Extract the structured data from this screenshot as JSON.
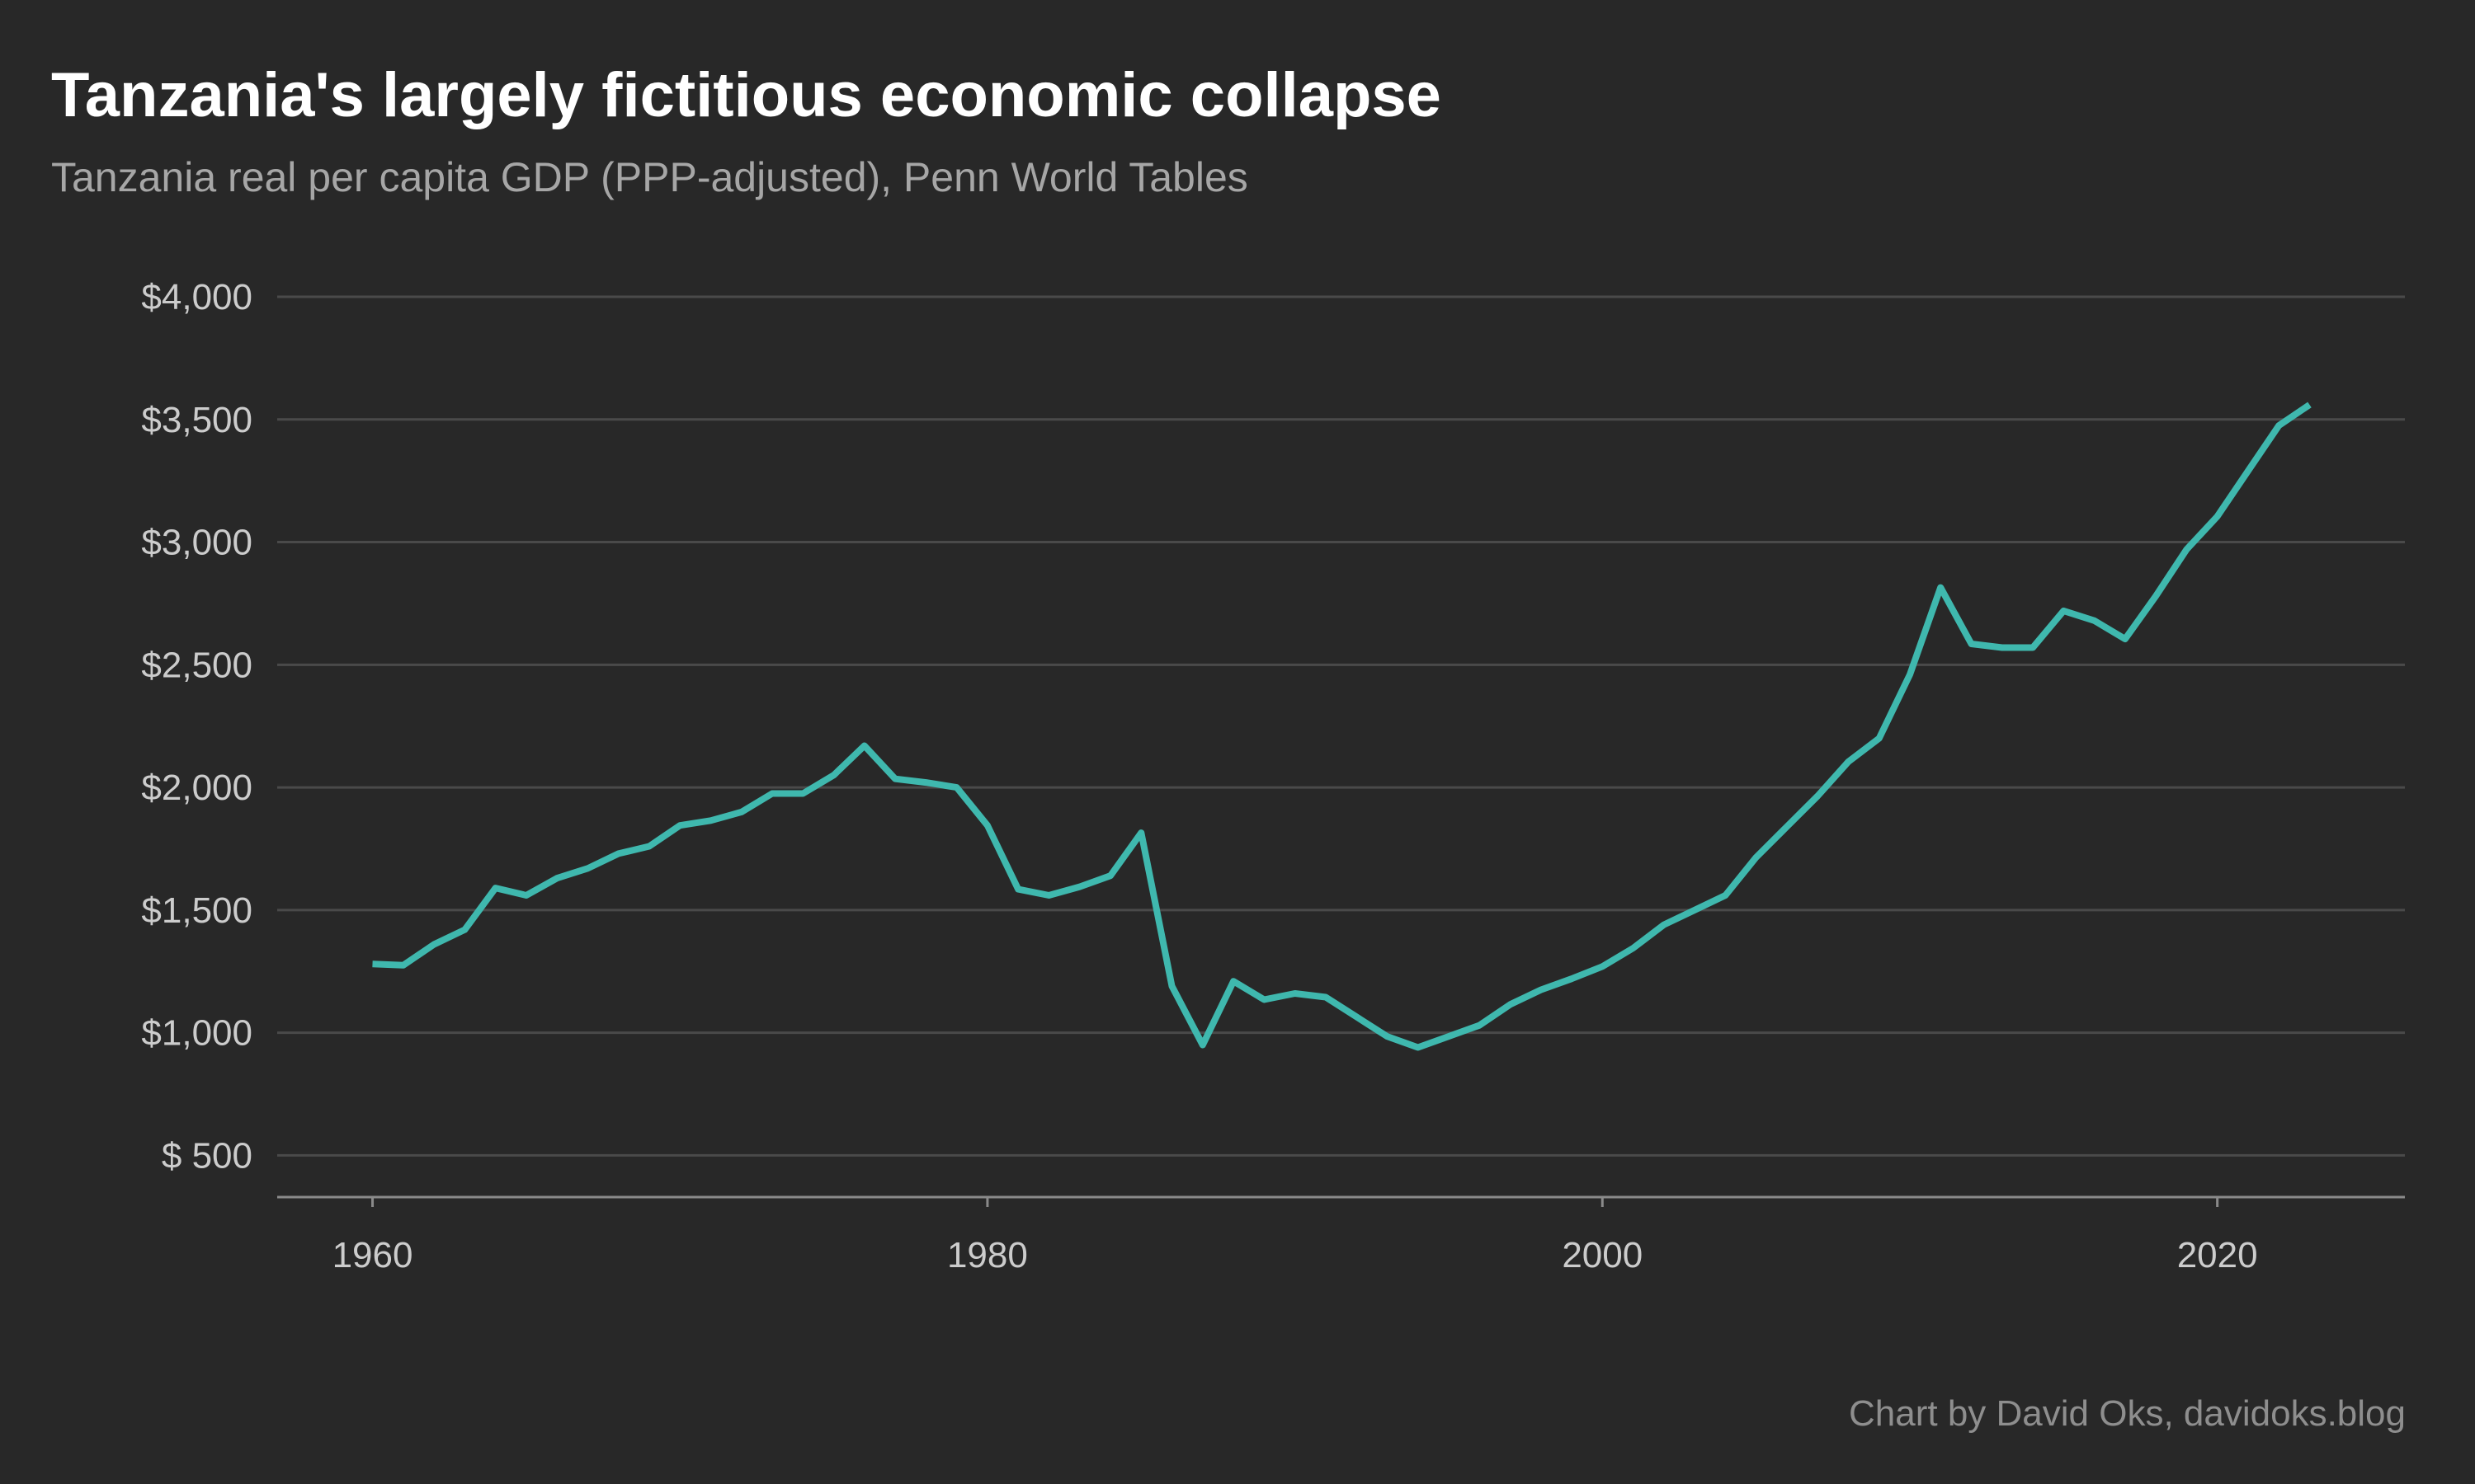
{
  "title": "Tanzania's largely fictitious economic collapse",
  "subtitle": "Tanzania real per capita GDP (PPP-adjusted), Penn World Tables",
  "caption": "Chart by David Oks, davidoks.blog",
  "colors": {
    "background": "#282828",
    "line": "#3fb8ae",
    "grid": "#4a4a4a",
    "axis": "#8a8a8a",
    "title": "#ffffff",
    "subtitle": "#a6a6a6",
    "tick": "#cccccc"
  },
  "chart_data": {
    "type": "line",
    "title": "Tanzania's largely fictitious economic collapse",
    "subtitle": "Tanzania real per capita GDP (PPP-adjusted), Penn World Tables",
    "xlabel": "",
    "ylabel": "",
    "xlim": [
      1956.9,
      2026.1
    ],
    "ylim": [
      330,
      4000
    ],
    "grid": true,
    "legend": "none",
    "x_ticks": [
      1960,
      1980,
      2000,
      2020
    ],
    "x_tick_labels": [
      "1960",
      "1980",
      "2000",
      "2020"
    ],
    "y_ticks": [
      500,
      1000,
      1500,
      2000,
      2500,
      3000,
      3500,
      4000
    ],
    "y_tick_labels": [
      "$  500",
      "$1,000",
      "$1,500",
      "$2,000",
      "$2,500",
      "$3,000",
      "$3,500",
      "$4,000"
    ],
    "series": [
      {
        "x": [
          1960,
          1961,
          1962,
          1963,
          1964,
          1965,
          1966,
          1967,
          1968,
          1969,
          1970,
          1971,
          1972,
          1973,
          1974,
          1975,
          1976,
          1977,
          1978,
          1979,
          1980,
          1981,
          1982,
          1983,
          1984,
          1985,
          1986,
          1987,
          1988,
          1989,
          1990,
          1991,
          1992,
          1993,
          1994,
          1995,
          1996,
          1997,
          1998,
          1999,
          2000,
          2001,
          2002,
          2003,
          2004,
          2005,
          2006,
          2007,
          2008,
          2009,
          2010,
          2011,
          2012,
          2013,
          2014,
          2015,
          2016,
          2017,
          2018,
          2019,
          2020,
          2021,
          2022,
          2023
        ],
        "values": [
          1280,
          1275,
          1360,
          1420,
          1590,
          1560,
          1630,
          1670,
          1730,
          1760,
          1845,
          1865,
          1900,
          1975,
          1975,
          2050,
          2170,
          2035,
          2020,
          2000,
          1845,
          1585,
          1560,
          1595,
          1640,
          1815,
          1190,
          950,
          1210,
          1135,
          1160,
          1145,
          1065,
          985,
          940,
          985,
          1030,
          1115,
          1175,
          1220,
          1270,
          1345,
          1440,
          1500,
          1560,
          1715,
          1840,
          1965,
          2105,
          2200,
          2460,
          2815,
          2585,
          2570,
          2570,
          2720,
          2680,
          2605,
          2780,
          2970,
          3105,
          3290,
          3475,
          3560
        ]
      }
    ]
  }
}
